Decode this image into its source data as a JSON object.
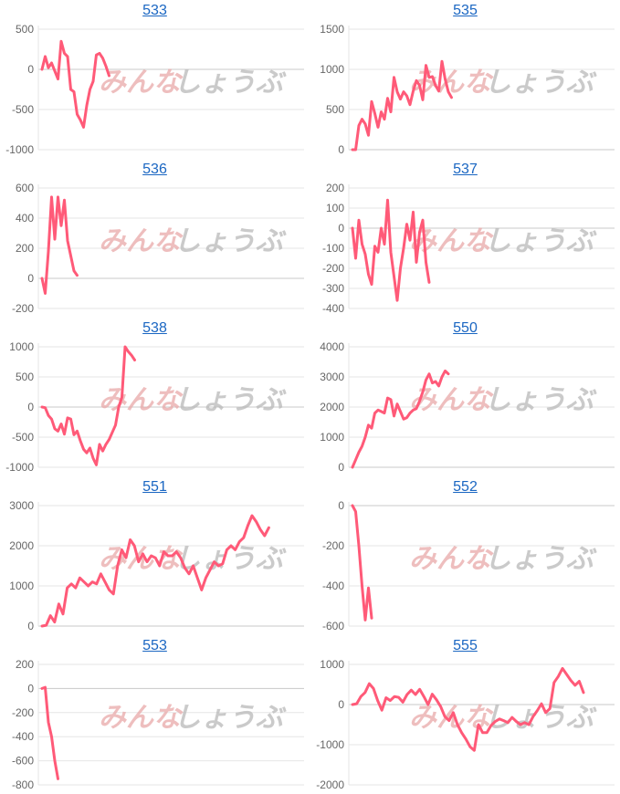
{
  "colors": {
    "line": "#ff5a78",
    "grid": "#e6e6e6",
    "axis": "#c8c8c8",
    "tick": "#666666",
    "link": "#1a66c2",
    "watermark_red": "#e9a9a9",
    "watermark_gray": "#b9b9b9"
  },
  "watermark": {
    "text_left": "みんな",
    "text_right": "しょうぶ"
  },
  "chart_data": [
    {
      "type": "line",
      "title": "533",
      "ylim": [
        -1000,
        500
      ],
      "yticks": [
        500,
        0,
        -500,
        -1000
      ],
      "grid": true,
      "series": [
        {
          "values": [
            0,
            160,
            20,
            80,
            -20,
            -120,
            350,
            200,
            160,
            -250,
            -280,
            -560,
            -630,
            -720,
            -450,
            -250,
            -150,
            180,
            200,
            140,
            40,
            -80
          ]
        }
      ]
    },
    {
      "type": "line",
      "title": "535",
      "ylim": [
        0,
        1500
      ],
      "yticks": [
        1500,
        1000,
        500,
        0
      ],
      "grid": true,
      "series": [
        {
          "values": [
            0,
            0,
            300,
            380,
            320,
            180,
            600,
            450,
            280,
            470,
            380,
            640,
            470,
            900,
            720,
            630,
            720,
            670,
            560,
            730,
            860,
            800,
            620,
            1050,
            900,
            910,
            800,
            730,
            1100,
            880,
            720,
            650
          ]
        }
      ]
    },
    {
      "type": "line",
      "title": "536",
      "ylim": [
        -200,
        600
      ],
      "yticks": [
        600,
        400,
        200,
        0,
        -200
      ],
      "grid": true,
      "series": [
        {
          "values": [
            0,
            -100,
            180,
            540,
            260,
            540,
            350,
            520,
            250,
            150,
            50,
            20
          ]
        }
      ]
    },
    {
      "type": "line",
      "title": "537",
      "ylim": [
        -400,
        200
      ],
      "yticks": [
        200,
        100,
        0,
        -100,
        -200,
        -300,
        -400
      ],
      "grid": true,
      "series": [
        {
          "values": [
            0,
            -150,
            40,
            -80,
            -130,
            -230,
            -280,
            -90,
            -120,
            0,
            -80,
            140,
            -120,
            -240,
            -360,
            -200,
            -100,
            20,
            -60,
            80,
            -170,
            -20,
            40,
            -170,
            -270
          ]
        }
      ]
    },
    {
      "type": "line",
      "title": "538",
      "ylim": [
        -1000,
        1000
      ],
      "yticks": [
        1000,
        500,
        0,
        -500,
        -1000
      ],
      "grid": true,
      "series": [
        {
          "values": [
            0,
            -10,
            -140,
            -200,
            -360,
            -400,
            -280,
            -450,
            -180,
            -200,
            -460,
            -400,
            -560,
            -700,
            -760,
            -680,
            -850,
            -960,
            -620,
            -730,
            -620,
            -540,
            -420,
            -300,
            0,
            160,
            1000,
            920,
            860,
            780
          ]
        }
      ]
    },
    {
      "type": "line",
      "title": "550",
      "ylim": [
        0,
        4000
      ],
      "yticks": [
        4000,
        3000,
        2000,
        1000,
        0
      ],
      "grid": true,
      "series": [
        {
          "values": [
            0,
            250,
            500,
            700,
            1000,
            1400,
            1300,
            1800,
            1900,
            1850,
            1800,
            2300,
            2250,
            1700,
            2100,
            1850,
            1600,
            1650,
            1800,
            1900,
            1950,
            2200,
            2500,
            2900,
            3100,
            2800,
            2850,
            2700,
            3000,
            3200,
            3100
          ]
        }
      ]
    },
    {
      "type": "line",
      "title": "551",
      "ylim": [
        0,
        3000
      ],
      "yticks": [
        3000,
        2000,
        1000,
        0
      ],
      "grid": true,
      "series": [
        {
          "values": [
            0,
            20,
            260,
            100,
            550,
            300,
            950,
            1050,
            950,
            1200,
            1100,
            1000,
            1100,
            1050,
            1300,
            1100,
            900,
            800,
            1500,
            1900,
            1700,
            2150,
            2000,
            1600,
            1800,
            1600,
            1750,
            1700,
            1500,
            1850,
            1750,
            1750,
            1850,
            1700,
            1450,
            1300,
            1500,
            1200,
            900,
            1200,
            1400,
            1600,
            1500,
            1550,
            1900,
            2000,
            1900,
            2100,
            2200,
            2500,
            2750,
            2600,
            2400,
            2250,
            2450
          ]
        }
      ]
    },
    {
      "type": "line",
      "title": "552",
      "ylim": [
        -600,
        0
      ],
      "yticks": [
        0,
        -200,
        -400,
        -600
      ],
      "grid": true,
      "series": [
        {
          "values": [
            0,
            -30,
            -200,
            -400,
            -570,
            -410,
            -560
          ]
        }
      ]
    },
    {
      "type": "line",
      "title": "553",
      "ylim": [
        -800,
        200
      ],
      "yticks": [
        200,
        0,
        -200,
        -400,
        -600,
        -800
      ],
      "grid": true,
      "series": [
        {
          "values": [
            0,
            10,
            -280,
            -400,
            -600,
            -750
          ]
        }
      ]
    },
    {
      "type": "line",
      "title": "555",
      "ylim": [
        -2000,
        1000
      ],
      "yticks": [
        1000,
        0,
        -1000,
        -2000
      ],
      "grid": true,
      "series": [
        {
          "values": [
            0,
            20,
            200,
            300,
            520,
            400,
            100,
            -140,
            170,
            100,
            200,
            180,
            60,
            250,
            360,
            250,
            380,
            200,
            0,
            260,
            120,
            -50,
            -300,
            -400,
            -200,
            -500,
            -700,
            -860,
            -1050,
            -1140,
            -500,
            -700,
            -700,
            -520,
            -420,
            -360,
            -400,
            -450,
            -320,
            -420,
            -500,
            -450,
            -500,
            -300,
            -150,
            20,
            -200,
            -100,
            550,
            700,
            900,
            750,
            600,
            480,
            580,
            300
          ]
        }
      ]
    }
  ]
}
